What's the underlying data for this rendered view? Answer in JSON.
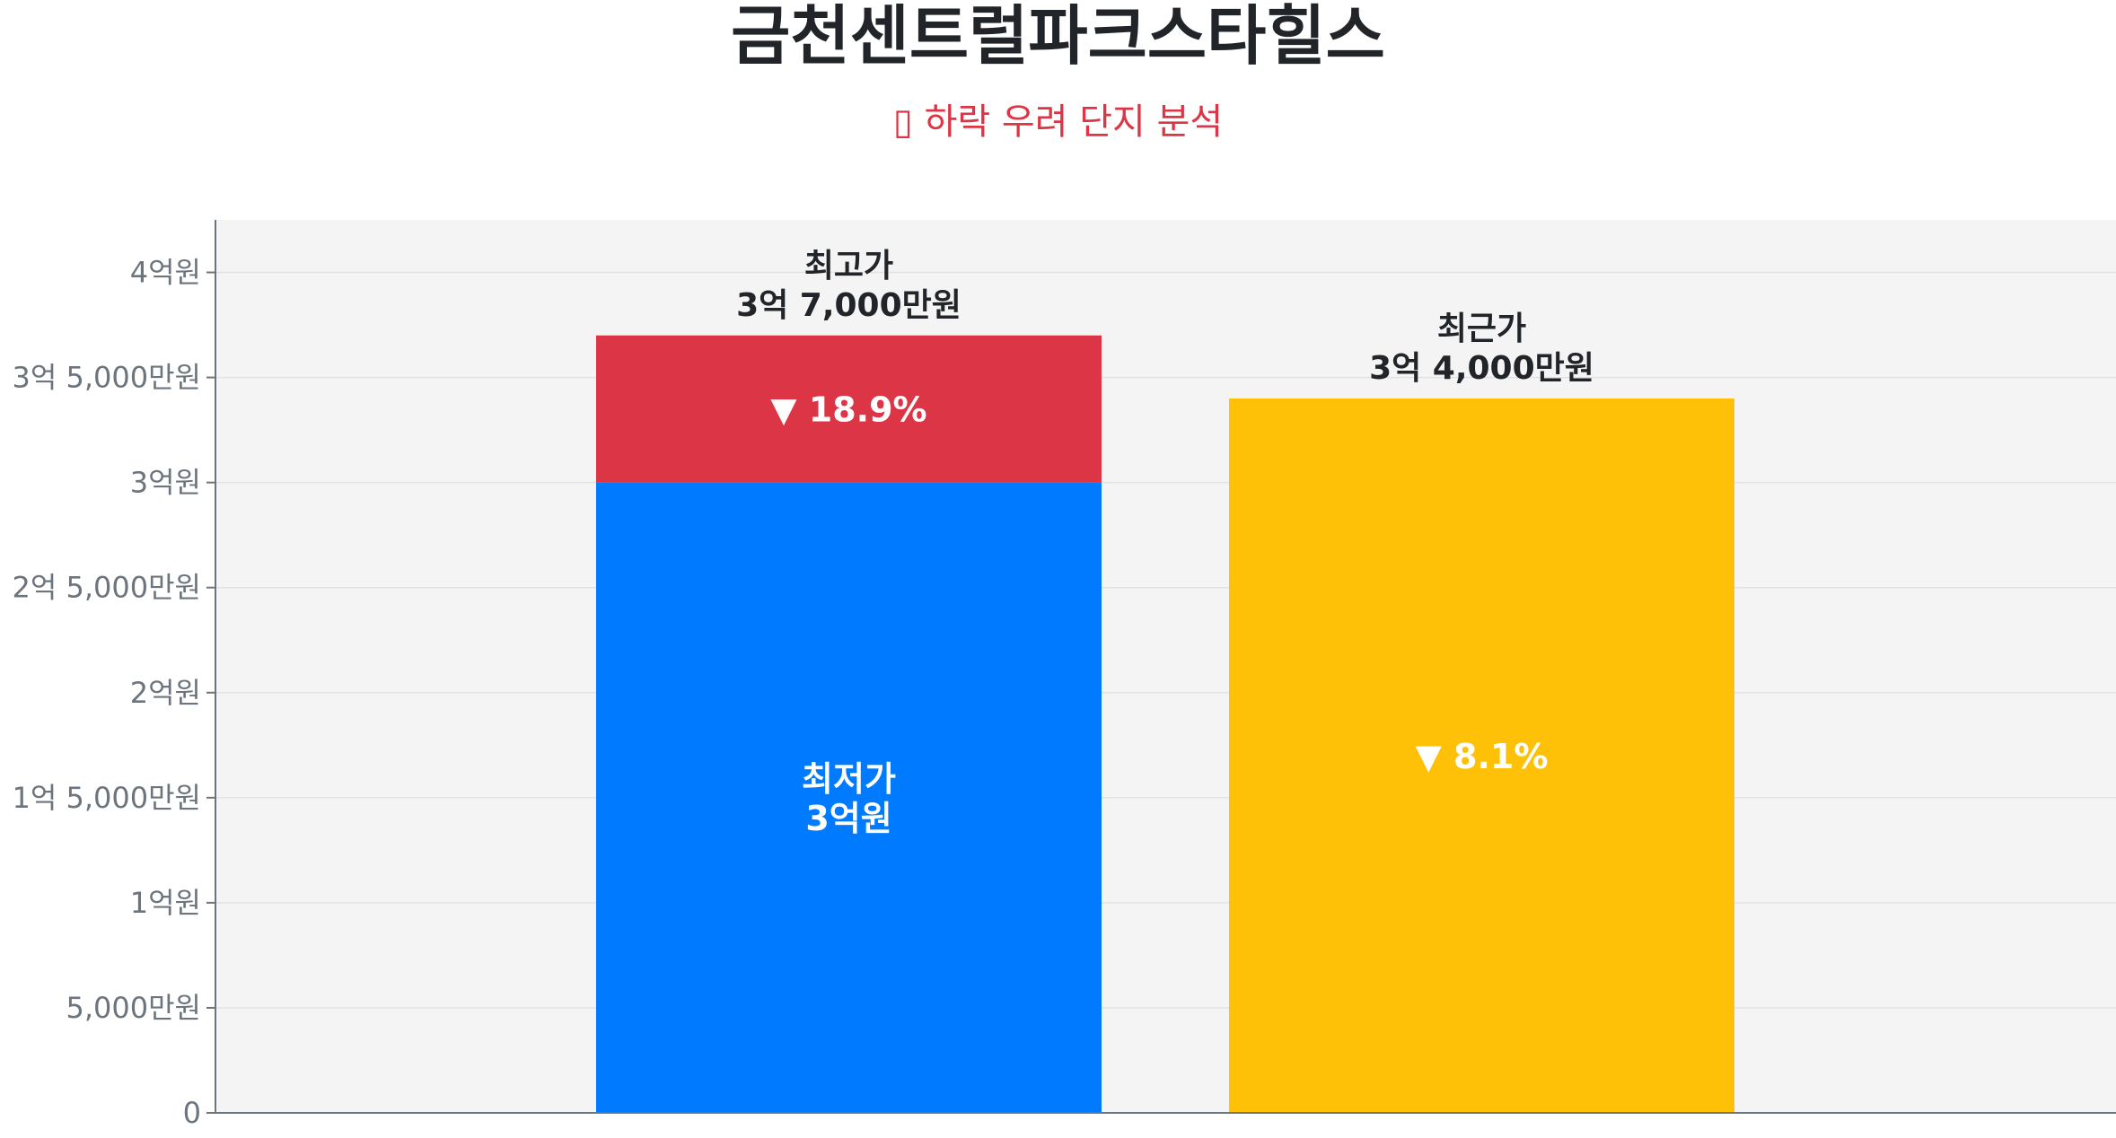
{
  "title": "금천센트럴파크스타힐스",
  "subtitle": "▯ 하락 우려 단지 분석",
  "chart_data": {
    "type": "bar",
    "title": "금천센트럴파크스타힐스",
    "subtitle": "▯ 하락 우려 단지 분석",
    "ylim": [
      0,
      425000000
    ],
    "yticks": [
      {
        "value": 0,
        "label": "0"
      },
      {
        "value": 50000000,
        "label": "5,000만원"
      },
      {
        "value": 100000000,
        "label": "1억원"
      },
      {
        "value": 150000000,
        "label": "1억 5,000만원"
      },
      {
        "value": 200000000,
        "label": "2억원"
      },
      {
        "value": 250000000,
        "label": "2억 5,000만원"
      },
      {
        "value": 300000000,
        "label": "3억원"
      },
      {
        "value": 350000000,
        "label": "3억 5,000만원"
      },
      {
        "value": 400000000,
        "label": "4억원"
      }
    ],
    "grid": true,
    "bars": [
      {
        "segments": [
          {
            "from": 0,
            "to": 300000000,
            "color": "#007bff",
            "label_lines": [
              "최저가",
              "3억원"
            ]
          },
          {
            "from": 300000000,
            "to": 370000000,
            "color": "#dc3545",
            "label_lines": [
              "▼ 18.9%"
            ]
          }
        ],
        "top_label_lines": [
          "최고가",
          "3억 7,000만원"
        ]
      },
      {
        "segments": [
          {
            "from": 0,
            "to": 340000000,
            "color": "#ffc107",
            "label_lines": [
              "▼ 8.1%"
            ]
          }
        ],
        "top_label_lines": [
          "최근가",
          "3억 4,000만원"
        ]
      }
    ],
    "colors": {
      "plot_background": "#f4f4f4",
      "grid": "#e2e2e2",
      "axis": "#6c757d",
      "tick_label": "#6c757d",
      "top_label": "#212529",
      "inner_label": "#ffffff"
    }
  }
}
